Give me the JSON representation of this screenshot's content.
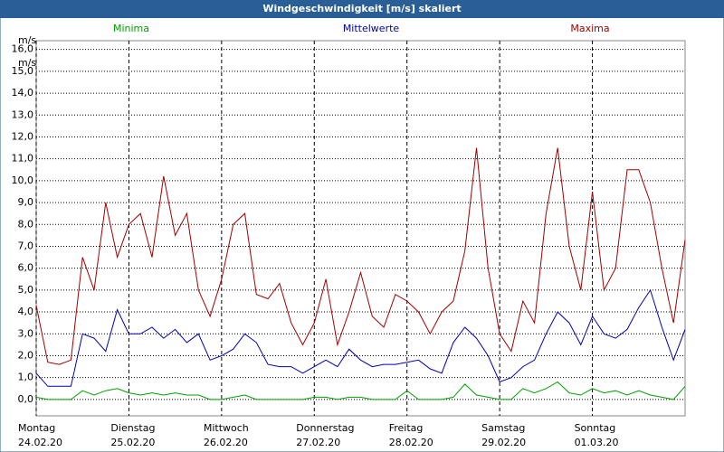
{
  "chart_data": {
    "type": "line",
    "title": "Windgeschwindigkeit [m/s] skaliert",
    "unit_labels": [
      "m/s",
      "m/s"
    ],
    "x": [
      0,
      3,
      6,
      9,
      12,
      15,
      18,
      21,
      24,
      27,
      30,
      33,
      36,
      39,
      42,
      45,
      48,
      51,
      54,
      57,
      60,
      63,
      66,
      69,
      72,
      75,
      78,
      81,
      84,
      87,
      90,
      93,
      96,
      99,
      102,
      105,
      108,
      111,
      114,
      117,
      120,
      123,
      126,
      129,
      132,
      135,
      138,
      141,
      144,
      147,
      150,
      153,
      156,
      159,
      162,
      165,
      168
    ],
    "xlim": [
      0,
      168
    ],
    "xticks": [
      {
        "value": 0,
        "label": "Montag",
        "date": "24.02.20"
      },
      {
        "value": 24,
        "label": "Dienstag",
        "date": "25.02.20"
      },
      {
        "value": 48,
        "label": "Mittwoch",
        "date": "26.02.20"
      },
      {
        "value": 72,
        "label": "Donnerstag",
        "date": "27.02.20"
      },
      {
        "value": 96,
        "label": "Freitag",
        "date": "28.02.20"
      },
      {
        "value": 120,
        "label": "Samstag",
        "date": "29.02.20"
      },
      {
        "value": 144,
        "label": "Sonntag",
        "date": "01.03.20"
      }
    ],
    "ylim": [
      -0.75,
      16.4
    ],
    "yticks": [
      {
        "value": 0,
        "label": "0,0"
      },
      {
        "value": 1,
        "label": "1,0"
      },
      {
        "value": 2,
        "label": "2,0"
      },
      {
        "value": 3,
        "label": "3,0"
      },
      {
        "value": 4,
        "label": "4,0"
      },
      {
        "value": 5,
        "label": "5,0"
      },
      {
        "value": 6,
        "label": "6,0"
      },
      {
        "value": 7,
        "label": "7,0"
      },
      {
        "value": 8,
        "label": "8,0"
      },
      {
        "value": 9,
        "label": "9,0"
      },
      {
        "value": 10,
        "label": "10,0"
      },
      {
        "value": 11,
        "label": "11,0"
      },
      {
        "value": 12,
        "label": "12,0"
      },
      {
        "value": 13,
        "label": "13,0"
      },
      {
        "value": 14,
        "label": "14,0"
      },
      {
        "value": 15,
        "label": "15,0"
      },
      {
        "value": 16,
        "label": "16,0"
      }
    ],
    "grid": true,
    "series": [
      {
        "name": "Minima",
        "color": "#00a000",
        "values": [
          0.1,
          0,
          0,
          0,
          0.4,
          0.2,
          0.4,
          0.5,
          0.3,
          0.2,
          0.3,
          0.2,
          0.3,
          0.2,
          0.2,
          0,
          0,
          0.1,
          0.2,
          0,
          0,
          0,
          0,
          0,
          0.1,
          0.1,
          0,
          0.1,
          0.1,
          0,
          0,
          0,
          0.4,
          0,
          0,
          0,
          0.1,
          0.7,
          0.2,
          0.1,
          0,
          0,
          0.5,
          0.3,
          0.5,
          0.8,
          0.3,
          0.2,
          0.5,
          0.3,
          0.4,
          0.2,
          0.4,
          0.2,
          0.1,
          0,
          0.6
        ]
      },
      {
        "name": "Mittelwerte",
        "color": "#0000b0",
        "values": [
          1.2,
          0.6,
          0.6,
          0.6,
          3.0,
          2.8,
          2.2,
          4.1,
          3.0,
          3.0,
          3.3,
          2.8,
          3.2,
          2.6,
          3.0,
          1.8,
          2.0,
          2.3,
          3.0,
          2.6,
          1.6,
          1.5,
          1.5,
          1.2,
          1.5,
          1.8,
          1.5,
          2.3,
          1.8,
          1.5,
          1.6,
          1.6,
          1.7,
          1.8,
          1.4,
          1.2,
          2.6,
          3.3,
          2.8,
          2.0,
          0.8,
          1.0,
          1.5,
          1.8,
          3.0,
          4.0,
          3.5,
          2.5,
          3.8,
          3.0,
          2.8,
          3.2,
          4.2,
          5.0,
          3.3,
          1.8,
          3.2
        ]
      },
      {
        "name": "Maxima",
        "color": "#a00000",
        "values": [
          4.3,
          1.7,
          1.6,
          1.8,
          6.5,
          5.0,
          9.0,
          6.5,
          8.0,
          8.5,
          6.5,
          10.2,
          7.5,
          8.5,
          5.0,
          3.8,
          5.5,
          8.0,
          8.5,
          4.8,
          4.6,
          5.3,
          3.5,
          2.5,
          3.5,
          5.5,
          2.5,
          4.0,
          5.8,
          3.8,
          3.3,
          4.8,
          4.5,
          4.0,
          3.0,
          4.0,
          4.5,
          6.8,
          11.5,
          6.0,
          3.0,
          2.2,
          4.5,
          3.5,
          8.5,
          11.5,
          7.0,
          5.0,
          9.5,
          5.0,
          6.0,
          10.5,
          10.5,
          9.0,
          6.0,
          3.5,
          7.3
        ]
      }
    ]
  }
}
